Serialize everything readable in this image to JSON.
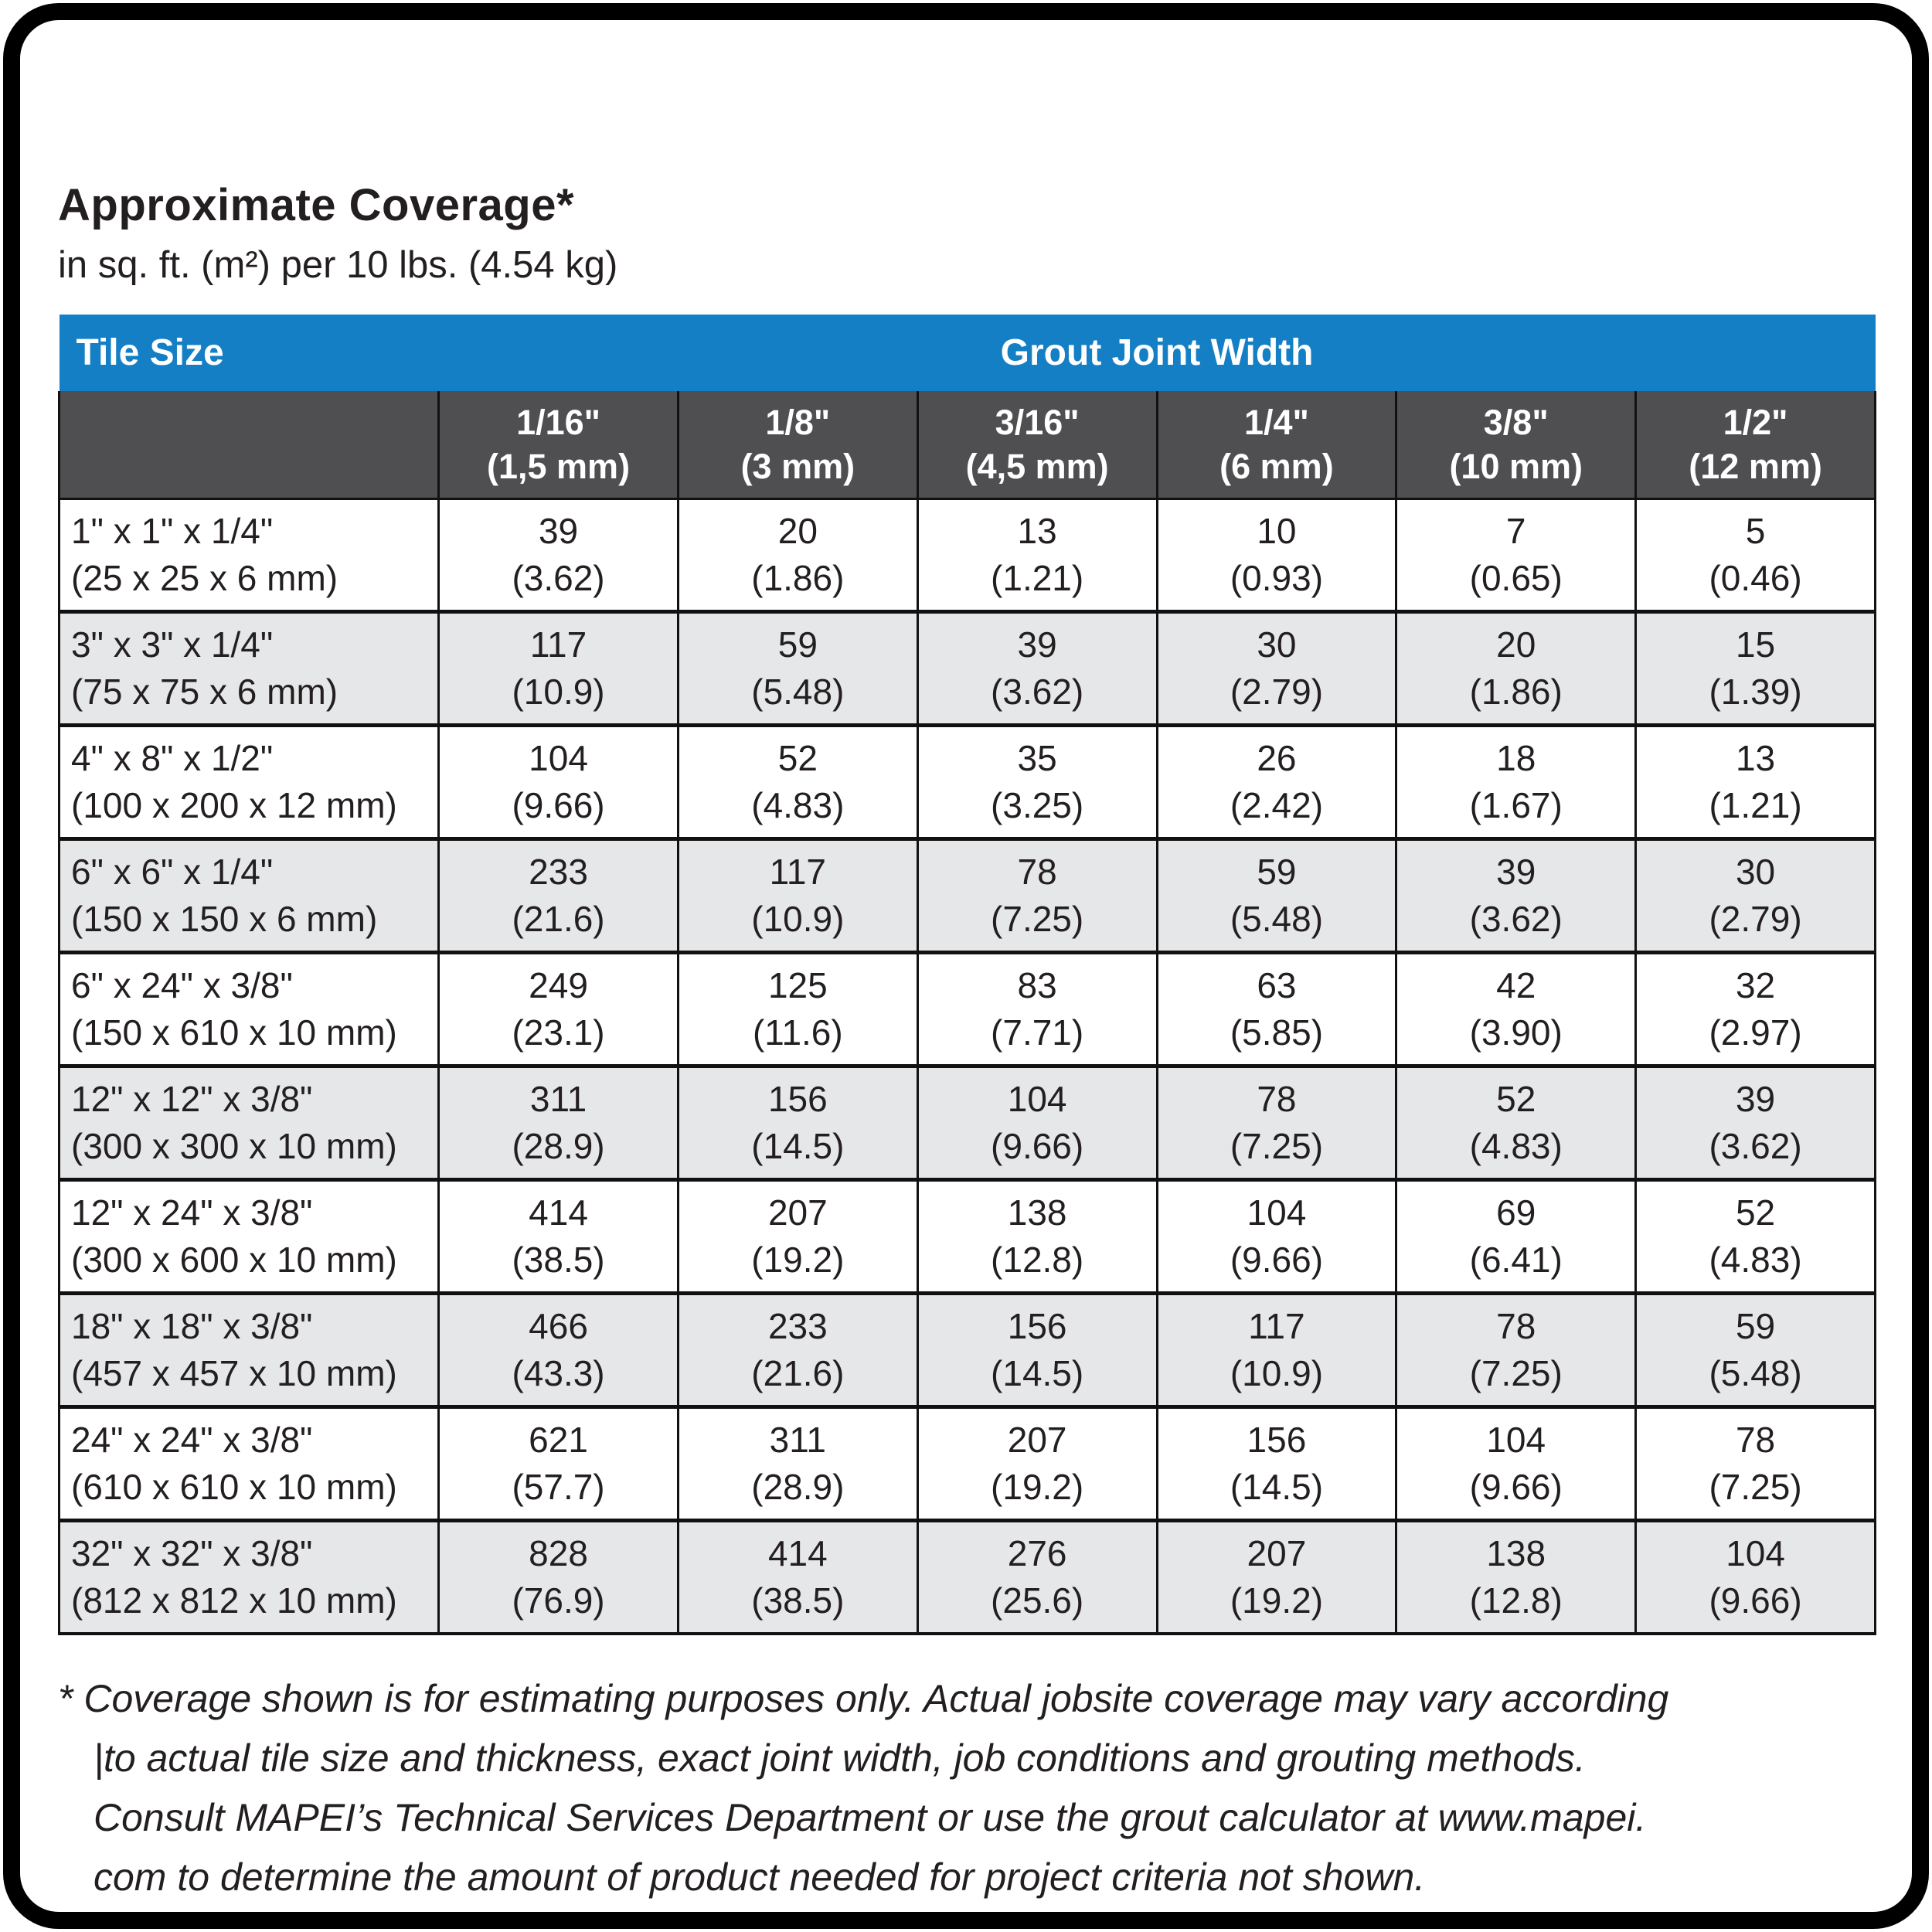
{
  "page": {
    "title": "Approximate Coverage*",
    "subtitle": "in sq. ft. (m²) per 10 lbs. (4.54 kg)"
  },
  "colors": {
    "header_blue": "#147fc4",
    "subheader_gray": "#4f4f51",
    "row_alt_gray": "#e6e7e8",
    "grid_line": "#111111",
    "text": "#231f20"
  },
  "table": {
    "header": {
      "tile_size": "Tile Size",
      "grout_joint_width": "Grout Joint Width"
    },
    "columns": [
      {
        "fraction": "1/16\"",
        "metric": "(1,5 mm)"
      },
      {
        "fraction": "1/8\"",
        "metric": "(3 mm)"
      },
      {
        "fraction": "3/16\"",
        "metric": "(4,5 mm)"
      },
      {
        "fraction": "1/4\"",
        "metric": "(6 mm)"
      },
      {
        "fraction": "3/8\"",
        "metric": "(10 mm)"
      },
      {
        "fraction": "1/2\"",
        "metric": "(12 mm)"
      }
    ],
    "rows": [
      {
        "size": "1\" x 1\" x 1/4\"",
        "size_metric": "(25 x 25 x 6 mm)",
        "values": [
          {
            "v": "39",
            "m": "(3.62)"
          },
          {
            "v": "20",
            "m": "(1.86)"
          },
          {
            "v": "13",
            "m": "(1.21)"
          },
          {
            "v": "10",
            "m": "(0.93)"
          },
          {
            "v": "7",
            "m": "(0.65)"
          },
          {
            "v": "5",
            "m": "(0.46)"
          }
        ]
      },
      {
        "size": "3\" x 3\" x 1/4\"",
        "size_metric": "(75 x 75 x 6 mm)",
        "values": [
          {
            "v": "117",
            "m": "(10.9)"
          },
          {
            "v": "59",
            "m": "(5.48)"
          },
          {
            "v": "39",
            "m": "(3.62)"
          },
          {
            "v": "30",
            "m": "(2.79)"
          },
          {
            "v": "20",
            "m": "(1.86)"
          },
          {
            "v": "15",
            "m": "(1.39)"
          }
        ]
      },
      {
        "size": "4\" x 8\" x 1/2\"",
        "size_metric": "(100 x 200 x 12 mm)",
        "values": [
          {
            "v": "104",
            "m": "(9.66)"
          },
          {
            "v": "52",
            "m": "(4.83)"
          },
          {
            "v": "35",
            "m": "(3.25)"
          },
          {
            "v": "26",
            "m": "(2.42)"
          },
          {
            "v": "18",
            "m": "(1.67)"
          },
          {
            "v": "13",
            "m": "(1.21)"
          }
        ]
      },
      {
        "size": "6\" x 6\" x 1/4\"",
        "size_metric": "(150 x 150 x 6 mm)",
        "values": [
          {
            "v": "233",
            "m": "(21.6)"
          },
          {
            "v": "117",
            "m": "(10.9)"
          },
          {
            "v": "78",
            "m": "(7.25)"
          },
          {
            "v": "59",
            "m": "(5.48)"
          },
          {
            "v": "39",
            "m": "(3.62)"
          },
          {
            "v": "30",
            "m": "(2.79)"
          }
        ]
      },
      {
        "size": "6\" x 24\" x 3/8\"",
        "size_metric": "(150 x 610 x 10 mm)",
        "values": [
          {
            "v": "249",
            "m": "(23.1)"
          },
          {
            "v": "125",
            "m": "(11.6)"
          },
          {
            "v": "83",
            "m": "(7.71)"
          },
          {
            "v": "63",
            "m": "(5.85)"
          },
          {
            "v": "42",
            "m": "(3.90)"
          },
          {
            "v": "32",
            "m": "(2.97)"
          }
        ]
      },
      {
        "size": "12\" x 12\" x 3/8\"",
        "size_metric": "(300 x 300 x 10 mm)",
        "values": [
          {
            "v": "311",
            "m": "(28.9)"
          },
          {
            "v": "156",
            "m": "(14.5)"
          },
          {
            "v": "104",
            "m": "(9.66)"
          },
          {
            "v": "78",
            "m": "(7.25)"
          },
          {
            "v": "52",
            "m": "(4.83)"
          },
          {
            "v": "39",
            "m": "(3.62)"
          }
        ]
      },
      {
        "size": "12\" x 24\" x 3/8\"",
        "size_metric": "(300 x 600 x 10 mm)",
        "values": [
          {
            "v": "414",
            "m": "(38.5)"
          },
          {
            "v": "207",
            "m": "(19.2)"
          },
          {
            "v": "138",
            "m": "(12.8)"
          },
          {
            "v": "104",
            "m": "(9.66)"
          },
          {
            "v": "69",
            "m": "(6.41)"
          },
          {
            "v": "52",
            "m": "(4.83)"
          }
        ]
      },
      {
        "size": "18\" x 18\" x 3/8\"",
        "size_metric": "(457 x 457 x 10 mm)",
        "values": [
          {
            "v": "466",
            "m": "(43.3)"
          },
          {
            "v": "233",
            "m": "(21.6)"
          },
          {
            "v": "156",
            "m": "(14.5)"
          },
          {
            "v": "117",
            "m": "(10.9)"
          },
          {
            "v": "78",
            "m": "(7.25)"
          },
          {
            "v": "59",
            "m": "(5.48)"
          }
        ]
      },
      {
        "size": "24\" x 24\" x 3/8\"",
        "size_metric": "(610 x 610 x 10 mm)",
        "values": [
          {
            "v": "621",
            "m": "(57.7)"
          },
          {
            "v": "311",
            "m": "(28.9)"
          },
          {
            "v": "207",
            "m": "(19.2)"
          },
          {
            "v": "156",
            "m": "(14.5)"
          },
          {
            "v": "104",
            "m": "(9.66)"
          },
          {
            "v": "78",
            "m": "(7.25)"
          }
        ]
      },
      {
        "size": "32\" x 32\" x 3/8\"",
        "size_metric": "(812 x 812 x 10 mm)",
        "values": [
          {
            "v": "828",
            "m": "(76.9)"
          },
          {
            "v": "414",
            "m": "(38.5)"
          },
          {
            "v": "276",
            "m": "(25.6)"
          },
          {
            "v": "207",
            "m": "(19.2)"
          },
          {
            "v": "138",
            "m": "(12.8)"
          },
          {
            "v": "104",
            "m": "(9.66)"
          }
        ]
      }
    ]
  },
  "footnote": {
    "lines": [
      "* Coverage shown is for estimating purposes only. Actual jobsite coverage may vary according",
      "|to actual tile size and thickness, exact joint width, job conditions and grouting methods.",
      "Consult MAPEI’s Technical Services Department or use the grout calculator at www.mapei.",
      "com to determine the amount of product needed for project criteria not shown."
    ]
  }
}
